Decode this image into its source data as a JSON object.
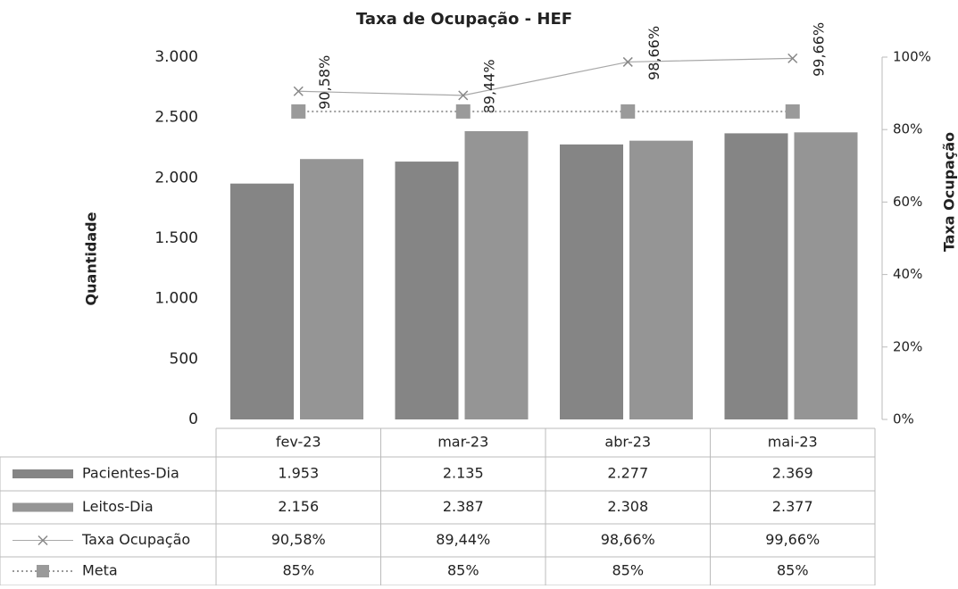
{
  "chart_data": {
    "type": "bar",
    "title": "Taxa de Ocupação - HEF",
    "y_label": "Quantidade",
    "y2_label": "Taxa Ocupação",
    "categories": [
      "fev-23",
      "mar-23",
      "abr-23",
      "mai-23"
    ],
    "series": [
      {
        "name": "Pacientes-Dia",
        "type": "bar",
        "color": "#858585",
        "values": [
          1953,
          2135,
          2277,
          2369
        ],
        "value_labels": [
          "1.953",
          "2.135",
          "2.277",
          "2.369"
        ]
      },
      {
        "name": "Leitos-Dia",
        "type": "bar",
        "color": "#959595",
        "values": [
          2156,
          2387,
          2308,
          2377
        ],
        "value_labels": [
          "2.156",
          "2.387",
          "2.308",
          "2.377"
        ]
      },
      {
        "name": "Taxa Ocupação",
        "type": "line",
        "axis": "y2",
        "color": "#a8a8a8",
        "values": [
          90.58,
          89.44,
          98.66,
          99.66
        ],
        "value_labels": [
          "90,58%",
          "89,44%",
          "98,66%",
          "99,66%"
        ]
      },
      {
        "name": "Meta",
        "type": "line",
        "axis": "y2",
        "color": "#9a9a9a",
        "values": [
          85,
          85,
          85,
          85
        ],
        "value_labels": [
          "85%",
          "85%",
          "85%",
          "85%"
        ]
      }
    ],
    "ylim": [
      0,
      3000
    ],
    "yticks": [
      0,
      500,
      {
        "value": 1000,
        "label": "1.000"
      },
      {
        "value": 1500,
        "label": "1.500"
      },
      {
        "value": 2000,
        "label": "2.000"
      },
      {
        "value": 2500,
        "label": "2.500"
      },
      {
        "value": 3000,
        "label": "3.000"
      }
    ],
    "y2lim": [
      0,
      100
    ],
    "y2ticks": [
      {
        "value": 0,
        "label": "0%"
      },
      {
        "value": 20,
        "label": "20%"
      },
      {
        "value": 40,
        "label": "40%"
      },
      {
        "value": 60,
        "label": "60%"
      },
      {
        "value": 80,
        "label": "80%"
      },
      {
        "value": 100,
        "label": "100%"
      }
    ],
    "grid": false
  }
}
